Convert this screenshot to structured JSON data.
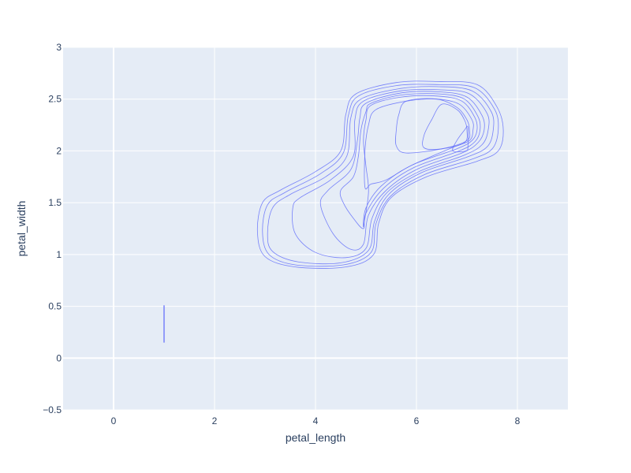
{
  "chart_data": {
    "type": "contour",
    "xlabel": "petal_length",
    "ylabel": "petal_width",
    "xlim": [
      -1,
      9
    ],
    "ylim": [
      -0.5,
      3
    ],
    "x_ticks": [
      0,
      2,
      4,
      6,
      8
    ],
    "y_ticks": [
      -0.5,
      0,
      0.5,
      1,
      1.5,
      2,
      2.5,
      3
    ],
    "y_tick_labels": [
      "−0.5",
      "0",
      "0.5",
      "1",
      "1.5",
      "2",
      "2.5",
      "3"
    ],
    "grid": true,
    "legend": "none",
    "colors": {
      "plot_bg": "#e5ecf6",
      "grid": "#ffffff",
      "line": "#636efa",
      "text": "#2a3f5f"
    },
    "segments": [
      {
        "name": "vertical-segment",
        "points": [
          [
            1.0,
            0.15
          ],
          [
            1.0,
            0.51
          ]
        ]
      }
    ],
    "contours": [
      {
        "level": 1,
        "points": [
          [
            2.85,
            1.22
          ],
          [
            2.95,
            1.5
          ],
          [
            3.3,
            1.62
          ],
          [
            4.0,
            1.8
          ],
          [
            4.5,
            2.0
          ],
          [
            4.6,
            2.35
          ],
          [
            4.8,
            2.55
          ],
          [
            5.6,
            2.66
          ],
          [
            6.4,
            2.67
          ],
          [
            7.2,
            2.64
          ],
          [
            7.6,
            2.42
          ],
          [
            7.72,
            2.2
          ],
          [
            7.62,
            2.0
          ],
          [
            7.2,
            1.9
          ],
          [
            6.2,
            1.75
          ],
          [
            5.5,
            1.55
          ],
          [
            5.25,
            1.3
          ],
          [
            5.15,
            1.0
          ],
          [
            4.6,
            0.88
          ],
          [
            3.6,
            0.88
          ],
          [
            3.0,
            0.98
          ],
          [
            2.85,
            1.22
          ]
        ]
      },
      {
        "level": 2,
        "points": [
          [
            2.95,
            1.22
          ],
          [
            3.05,
            1.48
          ],
          [
            3.4,
            1.6
          ],
          [
            4.1,
            1.78
          ],
          [
            4.55,
            1.98
          ],
          [
            4.65,
            2.34
          ],
          [
            4.85,
            2.53
          ],
          [
            5.6,
            2.63
          ],
          [
            6.4,
            2.64
          ],
          [
            7.15,
            2.61
          ],
          [
            7.55,
            2.4
          ],
          [
            7.62,
            2.2
          ],
          [
            7.5,
            2.02
          ],
          [
            7.1,
            1.92
          ],
          [
            6.15,
            1.77
          ],
          [
            5.48,
            1.56
          ],
          [
            5.2,
            1.3
          ],
          [
            5.1,
            1.02
          ],
          [
            4.55,
            0.9
          ],
          [
            3.6,
            0.9
          ],
          [
            3.08,
            1.0
          ],
          [
            2.95,
            1.22
          ]
        ]
      },
      {
        "level": 3,
        "points": [
          [
            3.05,
            1.2
          ],
          [
            3.15,
            1.45
          ],
          [
            3.5,
            1.58
          ],
          [
            4.2,
            1.75
          ],
          [
            4.62,
            1.95
          ],
          [
            4.7,
            2.32
          ],
          [
            4.9,
            2.5
          ],
          [
            5.65,
            2.6
          ],
          [
            6.4,
            2.62
          ],
          [
            7.1,
            2.58
          ],
          [
            7.48,
            2.38
          ],
          [
            7.52,
            2.2
          ],
          [
            7.4,
            2.04
          ],
          [
            7.0,
            1.94
          ],
          [
            6.1,
            1.79
          ],
          [
            5.45,
            1.58
          ],
          [
            5.17,
            1.32
          ],
          [
            5.05,
            1.04
          ],
          [
            4.5,
            0.92
          ],
          [
            3.65,
            0.93
          ],
          [
            3.15,
            1.03
          ],
          [
            3.05,
            1.2
          ]
        ]
      },
      {
        "level": 4,
        "points": [
          [
            3.55,
            1.45
          ],
          [
            3.7,
            1.55
          ],
          [
            4.3,
            1.72
          ],
          [
            4.75,
            1.95
          ],
          [
            4.78,
            2.3
          ],
          [
            4.95,
            2.48
          ],
          [
            5.7,
            2.58
          ],
          [
            6.45,
            2.59
          ],
          [
            7.05,
            2.55
          ],
          [
            7.4,
            2.36
          ],
          [
            7.42,
            2.2
          ],
          [
            7.3,
            2.06
          ],
          [
            6.95,
            1.96
          ],
          [
            6.05,
            1.8
          ],
          [
            5.42,
            1.6
          ],
          [
            5.12,
            1.35
          ],
          [
            5.0,
            1.06
          ],
          [
            4.6,
            0.97
          ],
          [
            4.0,
            1.02
          ],
          [
            3.6,
            1.2
          ],
          [
            3.55,
            1.45
          ]
        ]
      },
      {
        "level": 5,
        "points": [
          [
            4.1,
            1.48
          ],
          [
            4.25,
            1.62
          ],
          [
            4.7,
            1.82
          ],
          [
            4.83,
            2.1
          ],
          [
            4.88,
            2.32
          ],
          [
            5.0,
            2.46
          ],
          [
            5.7,
            2.56
          ],
          [
            6.45,
            2.57
          ],
          [
            7.0,
            2.52
          ],
          [
            7.3,
            2.34
          ],
          [
            7.34,
            2.2
          ],
          [
            7.22,
            2.08
          ],
          [
            6.9,
            1.98
          ],
          [
            6.0,
            1.82
          ],
          [
            5.4,
            1.62
          ],
          [
            5.05,
            1.38
          ],
          [
            4.95,
            1.1
          ],
          [
            4.7,
            1.05
          ],
          [
            4.35,
            1.2
          ],
          [
            4.1,
            1.48
          ]
        ]
      },
      {
        "level": 6,
        "points": [
          [
            4.5,
            1.62
          ],
          [
            4.75,
            1.75
          ],
          [
            4.85,
            1.95
          ],
          [
            4.9,
            2.2
          ],
          [
            5.0,
            2.38
          ],
          [
            5.1,
            2.46
          ],
          [
            5.7,
            2.54
          ],
          [
            6.45,
            2.55
          ],
          [
            6.95,
            2.5
          ],
          [
            7.22,
            2.33
          ],
          [
            7.26,
            2.2
          ],
          [
            7.16,
            2.09
          ],
          [
            6.85,
            2.0
          ],
          [
            5.95,
            1.84
          ],
          [
            5.35,
            1.64
          ],
          [
            5.0,
            1.4
          ],
          [
            4.95,
            1.25
          ],
          [
            4.75,
            1.35
          ],
          [
            4.55,
            1.5
          ],
          [
            4.5,
            1.62
          ]
        ]
      },
      {
        "level": 7,
        "points": [
          [
            4.95,
            1.27
          ],
          [
            5.05,
            1.6
          ],
          [
            5.0,
            1.85
          ],
          [
            4.95,
            2.1
          ],
          [
            5.0,
            2.3
          ],
          [
            5.1,
            2.44
          ],
          [
            5.7,
            2.52
          ],
          [
            6.4,
            2.53
          ],
          [
            6.9,
            2.48
          ],
          [
            7.16,
            2.32
          ],
          [
            7.2,
            2.2
          ],
          [
            7.1,
            2.1
          ],
          [
            6.8,
            2.02
          ],
          [
            5.9,
            1.86
          ],
          [
            5.3,
            1.66
          ],
          [
            5.0,
            1.45
          ],
          [
            4.95,
            1.27
          ]
        ]
      },
      {
        "level": 8,
        "points": [
          [
            4.98,
            1.65
          ],
          [
            5.1,
            1.68
          ],
          [
            5.4,
            1.72
          ],
          [
            5.9,
            1.86
          ],
          [
            6.7,
            2.03
          ],
          [
            7.05,
            2.1
          ],
          [
            7.12,
            2.2
          ],
          [
            7.1,
            2.3
          ],
          [
            6.85,
            2.45
          ],
          [
            6.4,
            2.5
          ],
          [
            5.8,
            2.48
          ],
          [
            5.2,
            2.4
          ],
          [
            5.05,
            2.25
          ],
          [
            4.98,
            2.0
          ],
          [
            4.98,
            1.65
          ]
        ]
      },
      {
        "level": 9,
        "points": [
          [
            5.8,
            2.48
          ],
          [
            5.65,
            2.35
          ],
          [
            5.6,
            2.2
          ],
          [
            5.6,
            2.05
          ],
          [
            5.8,
            1.98
          ],
          [
            6.5,
            2.02
          ],
          [
            7.0,
            2.1
          ],
          [
            7.05,
            2.2
          ],
          [
            7.0,
            2.3
          ],
          [
            6.8,
            2.42
          ],
          [
            6.4,
            2.5
          ],
          [
            5.8,
            2.48
          ]
        ]
      },
      {
        "level": 10,
        "points": [
          [
            6.5,
            2.45
          ],
          [
            6.3,
            2.3
          ],
          [
            6.15,
            2.15
          ],
          [
            6.15,
            2.03
          ],
          [
            6.5,
            2.02
          ],
          [
            6.95,
            2.08
          ],
          [
            7.0,
            2.2
          ],
          [
            6.95,
            2.3
          ],
          [
            6.8,
            2.4
          ],
          [
            6.5,
            2.45
          ]
        ]
      },
      {
        "level": 11,
        "points": [
          [
            6.72,
            2.0
          ],
          [
            6.8,
            2.1
          ],
          [
            6.95,
            2.2
          ],
          [
            7.02,
            2.23
          ],
          [
            7.02,
            2.05
          ],
          [
            6.98,
            2.0
          ],
          [
            6.72,
            2.0
          ]
        ]
      }
    ]
  }
}
